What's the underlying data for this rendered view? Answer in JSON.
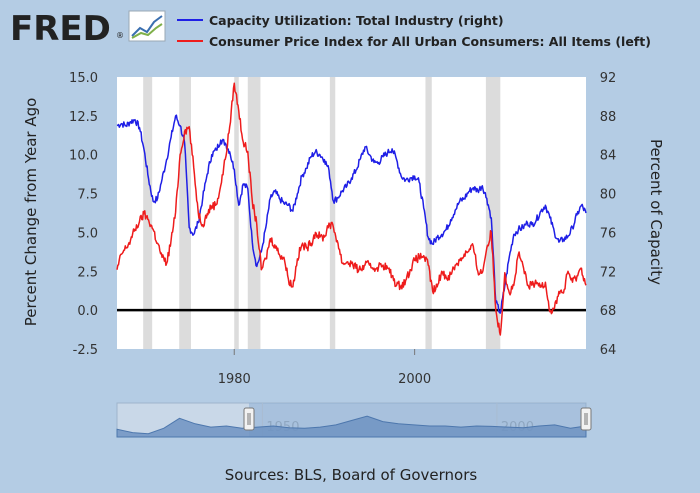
{
  "header": {
    "logo_text": "FRED",
    "logo_mark": "®",
    "logo_icon": "line-chart-icon"
  },
  "chart_data": {
    "type": "line",
    "title": "",
    "xlabel": "",
    "ylabel": "Percent Change from Year Ago",
    "y2label": "Percent of Capacity",
    "ylim": [
      -2.5,
      15.0
    ],
    "y2lim": [
      64,
      92
    ],
    "xlim": [
      1967,
      2019
    ],
    "y_ticks": [
      "15.0",
      "12.5",
      "10.0",
      "7.5",
      "5.0",
      "2.5",
      "0.0",
      "-2.5"
    ],
    "y2_ticks": [
      "92",
      "88",
      "84",
      "80",
      "76",
      "72",
      "68",
      "64"
    ],
    "x_ticks": [
      "1980",
      "2000"
    ],
    "recessions": [
      [
        1969.9,
        1970.9
      ],
      [
        1973.9,
        1975.2
      ],
      [
        1980.0,
        1980.5
      ],
      [
        1981.5,
        1982.9
      ],
      [
        1990.6,
        1991.2
      ],
      [
        2001.2,
        2001.9
      ],
      [
        2007.9,
        2009.5
      ]
    ],
    "series": [
      {
        "name": "Capacity Utilization: Total Industry (right)",
        "axis": "right",
        "color": "#1f1fe6",
        "x": [
          1967.0,
          1967.5,
          1968.0,
          1968.5,
          1969.0,
          1969.5,
          1970.0,
          1970.5,
          1971.0,
          1971.5,
          1972.0,
          1972.5,
          1973.0,
          1973.5,
          1974.0,
          1974.5,
          1975.0,
          1975.5,
          1976.0,
          1976.5,
          1977.0,
          1977.5,
          1978.0,
          1978.5,
          1979.0,
          1979.5,
          1980.0,
          1980.5,
          1981.0,
          1981.5,
          1982.0,
          1982.5,
          1983.0,
          1983.5,
          1984.0,
          1984.5,
          1985.0,
          1985.5,
          1986.0,
          1986.5,
          1987.0,
          1987.5,
          1988.0,
          1988.5,
          1989.0,
          1989.5,
          1990.0,
          1990.5,
          1991.0,
          1991.5,
          1992.0,
          1992.5,
          1993.0,
          1993.5,
          1994.0,
          1994.5,
          1995.0,
          1995.5,
          1996.0,
          1996.5,
          1997.0,
          1997.5,
          1998.0,
          1998.5,
          1999.0,
          1999.5,
          2000.0,
          2000.5,
          2001.0,
          2001.5,
          2002.0,
          2002.5,
          2003.0,
          2003.5,
          2004.0,
          2004.5,
          2005.0,
          2005.5,
          2006.0,
          2006.5,
          2007.0,
          2007.5,
          2008.0,
          2008.5,
          2009.0,
          2009.5,
          2010.0,
          2010.5,
          2011.0,
          2011.5,
          2012.0,
          2012.5,
          2013.0,
          2013.5,
          2014.0,
          2014.5,
          2015.0,
          2015.5,
          2016.0,
          2016.5,
          2017.0,
          2017.5,
          2018.0,
          2018.5,
          2019.0
        ],
        "values": [
          87.0,
          87.2,
          87.0,
          87.4,
          87.6,
          86.8,
          84.5,
          81.5,
          79.2,
          79.5,
          81.5,
          83.5,
          85.8,
          88.0,
          87.0,
          85.2,
          76.5,
          75.8,
          77.0,
          79.5,
          82.0,
          84.0,
          84.5,
          85.5,
          85.2,
          84.3,
          82.5,
          78.8,
          81.0,
          80.5,
          75.0,
          72.5,
          74.0,
          76.5,
          79.5,
          80.2,
          79.5,
          79.0,
          78.8,
          78.2,
          80.0,
          81.8,
          82.6,
          83.8,
          84.3,
          84.0,
          83.5,
          82.4,
          79.2,
          79.6,
          80.3,
          80.8,
          81.6,
          82.4,
          83.6,
          84.8,
          84.0,
          83.2,
          83.2,
          83.8,
          84.2,
          84.6,
          83.5,
          81.8,
          81.4,
          81.6,
          81.8,
          81.2,
          78.5,
          75.5,
          74.8,
          75.5,
          75.8,
          76.3,
          77.3,
          78.3,
          79.2,
          79.5,
          80.2,
          80.6,
          80.3,
          80.8,
          79.5,
          77.5,
          68.8,
          67.7,
          70.5,
          73.5,
          75.8,
          76.3,
          76.5,
          77.0,
          76.8,
          77.3,
          78.2,
          78.8,
          77.5,
          76.0,
          75.0,
          75.3,
          75.6,
          76.5,
          77.8,
          78.8,
          78.0
        ]
      },
      {
        "name": "Consumer Price Index for All Urban Consumers: All Items (left)",
        "axis": "left",
        "color": "#ee1c1c",
        "x": [
          1967.0,
          1967.5,
          1968.0,
          1968.5,
          1969.0,
          1969.5,
          1970.0,
          1970.5,
          1971.0,
          1971.5,
          1972.0,
          1972.5,
          1973.0,
          1973.5,
          1974.0,
          1974.5,
          1975.0,
          1975.5,
          1976.0,
          1976.5,
          1977.0,
          1977.5,
          1978.0,
          1978.5,
          1979.0,
          1979.5,
          1980.0,
          1980.5,
          1981.0,
          1981.5,
          1982.0,
          1982.5,
          1983.0,
          1983.5,
          1984.0,
          1984.5,
          1985.0,
          1985.5,
          1986.0,
          1986.5,
          1987.0,
          1987.5,
          1988.0,
          1988.5,
          1989.0,
          1989.5,
          1990.0,
          1990.5,
          1991.0,
          1991.5,
          1992.0,
          1992.5,
          1993.0,
          1993.5,
          1994.0,
          1994.5,
          1995.0,
          1995.5,
          1996.0,
          1996.5,
          1997.0,
          1997.5,
          1998.0,
          1998.5,
          1999.0,
          1999.5,
          2000.0,
          2000.5,
          2001.0,
          2001.5,
          2002.0,
          2002.5,
          2003.0,
          2003.5,
          2004.0,
          2004.5,
          2005.0,
          2005.5,
          2006.0,
          2006.5,
          2007.0,
          2007.5,
          2008.0,
          2008.5,
          2009.0,
          2009.5,
          2010.0,
          2010.5,
          2011.0,
          2011.5,
          2012.0,
          2012.5,
          2013.0,
          2013.5,
          2014.0,
          2014.5,
          2015.0,
          2015.5,
          2016.0,
          2016.5,
          2017.0,
          2017.5,
          2018.0,
          2018.5,
          2019.0
        ],
        "values": [
          2.6,
          3.6,
          4.0,
          4.5,
          5.2,
          5.7,
          6.2,
          5.8,
          5.2,
          4.3,
          3.4,
          3.0,
          4.5,
          6.3,
          10.0,
          11.5,
          11.8,
          9.2,
          6.3,
          5.5,
          6.2,
          6.7,
          6.8,
          8.0,
          9.7,
          11.8,
          14.6,
          12.8,
          10.8,
          10.2,
          7.0,
          5.5,
          2.6,
          3.3,
          4.6,
          4.2,
          3.6,
          3.4,
          2.0,
          1.5,
          3.3,
          4.2,
          4.0,
          4.3,
          5.0,
          4.7,
          4.7,
          5.6,
          5.3,
          4.3,
          3.0,
          3.1,
          3.0,
          2.7,
          2.6,
          2.9,
          2.9,
          2.7,
          2.8,
          2.9,
          2.7,
          2.2,
          1.6,
          1.6,
          1.9,
          2.6,
          3.2,
          3.4,
          3.5,
          2.9,
          1.2,
          1.5,
          2.5,
          2.1,
          2.3,
          2.9,
          3.2,
          3.6,
          3.8,
          4.1,
          2.5,
          2.4,
          4.0,
          5.0,
          0.0,
          -1.6,
          2.4,
          1.1,
          1.6,
          3.6,
          2.9,
          1.6,
          1.6,
          1.7,
          1.6,
          1.8,
          -0.1,
          0.1,
          1.2,
          1.1,
          2.5,
          1.8,
          2.2,
          2.7,
          1.6
        ]
      }
    ]
  },
  "navigator": {
    "tick_labels": [
      "1950",
      "2000"
    ]
  },
  "footer": {
    "sources": "Sources: BLS, Board of Governors"
  }
}
